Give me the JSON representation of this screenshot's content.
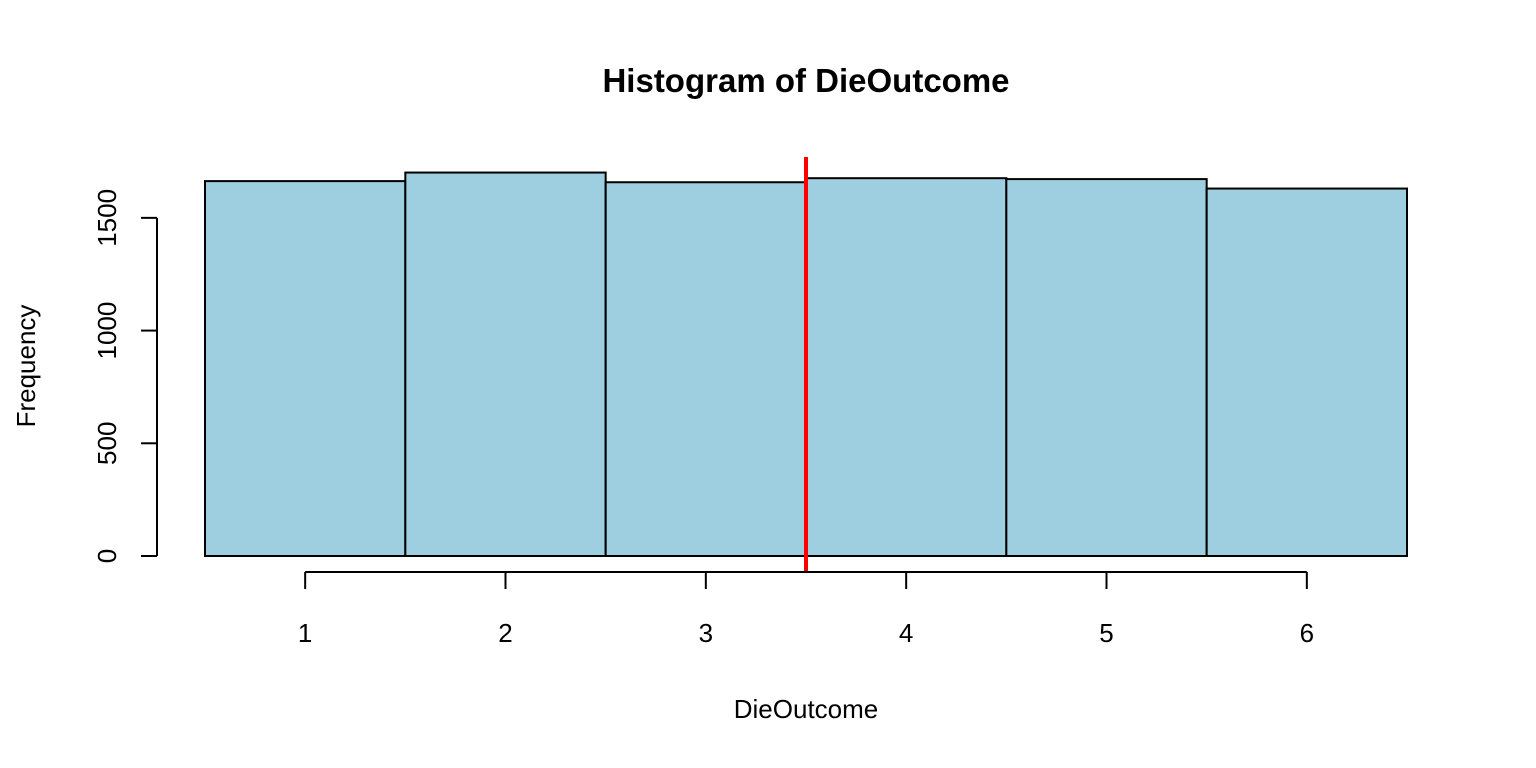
{
  "chart_data": {
    "type": "bar",
    "title": "Histogram of DieOutcome",
    "xlabel": "DieOutcome",
    "ylabel": "Frequency",
    "categories": [
      "1",
      "2",
      "3",
      "4",
      "5",
      "6"
    ],
    "x": [
      1,
      2,
      3,
      4,
      5,
      6
    ],
    "values": [
      1663,
      1701,
      1658,
      1676,
      1672,
      1630
    ],
    "bin_edges": [
      0.5,
      1.5,
      2.5,
      3.5,
      4.5,
      5.5,
      6.5
    ],
    "xlim": [
      0.5,
      6.5
    ],
    "ylim": [
      0,
      1770
    ],
    "x_ticks": [
      1,
      2,
      3,
      4,
      5,
      6
    ],
    "y_ticks": [
      0,
      500,
      1000,
      1500
    ],
    "y_tick_labels": [
      "0",
      "500",
      "1000",
      "1500"
    ],
    "grid": false,
    "bar_color": "#9ECFE0",
    "bar_border_color": "#000000",
    "reference_line": {
      "x": 3.5,
      "color": "#FF0000"
    }
  }
}
